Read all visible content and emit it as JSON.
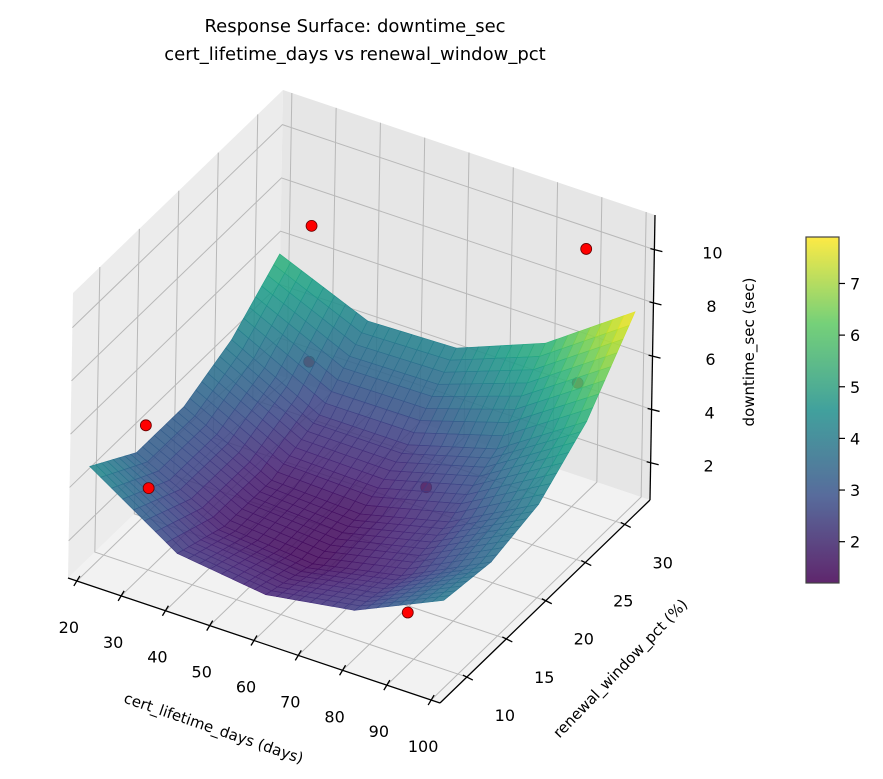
{
  "chart_data": {
    "type": "surface3d",
    "title": "Response Surface: downtime_sec",
    "subtitle": "cert_lifetime_days vs renewal_window_pct",
    "xlabel": "cert_lifetime_days (days)",
    "ylabel": "renewal_window_pct (%)",
    "zlabel": "downtime_sec (sec)",
    "xlim": [
      18,
      102
    ],
    "ylim": [
      6.6,
      33.2
    ],
    "zlim": [
      0.6,
      11.3
    ],
    "xticks": [
      20,
      30,
      40,
      50,
      60,
      70,
      80,
      90,
      100
    ],
    "yticks": [
      10,
      15,
      20,
      25,
      30
    ],
    "zticks": [
      2,
      4,
      6,
      8,
      10
    ],
    "colormap": "viridis",
    "colorbar": {
      "range": [
        1.2,
        7.9
      ],
      "ticks": [
        2,
        3,
        4,
        5,
        6,
        7
      ]
    },
    "surface": {
      "x": [
        20,
        40,
        60,
        80,
        100
      ],
      "y": [
        8,
        14,
        20,
        26,
        32
      ],
      "z": [
        [
          4.5,
          2.35,
          1.92,
          2.45,
          3.94
        ],
        [
          3.3,
          1.65,
          1.36,
          2.03,
          3.66
        ],
        [
          3.3,
          1.66,
          1.51,
          2.33,
          4.11
        ],
        [
          4.1,
          2.39,
          2.39,
          3.35,
          5.5
        ],
        [
          5.6,
          4.2,
          4.3,
          5.6,
          7.9
        ]
      ]
    },
    "points": [
      {
        "x": 30,
        "y": 30.3,
        "z": 7.7
      },
      {
        "x": 30,
        "y": 30.3,
        "z": 2.6
      },
      {
        "x": 90,
        "y": 31.3,
        "z": 9.9
      },
      {
        "x": 90,
        "y": 30.5,
        "z": 5.1
      },
      {
        "x": 30,
        "y": 9.4,
        "z": 6.2
      },
      {
        "x": 30,
        "y": 9.9,
        "z": 3.7
      },
      {
        "x": 70,
        "y": 22.7,
        "z": 2.3
      },
      {
        "x": 85,
        "y": 12,
        "z": 1.5
      }
    ],
    "point_color": "#ff0000",
    "grid": true
  }
}
